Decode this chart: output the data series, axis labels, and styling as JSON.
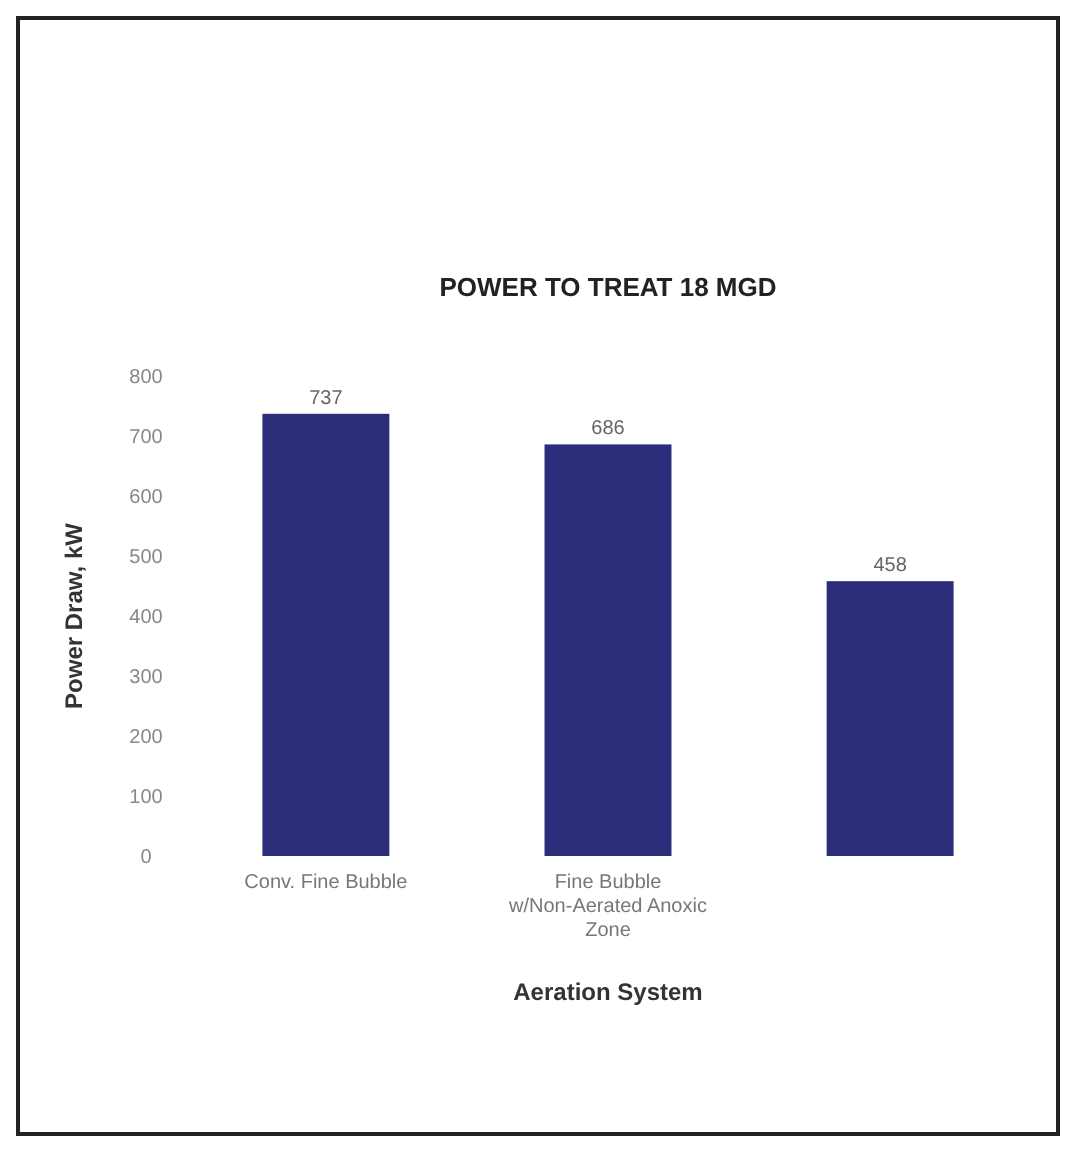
{
  "chart_data": {
    "type": "bar",
    "title": "POWER TO TREAT 18 MGD",
    "xlabel": "Aeration System",
    "ylabel": "Power Draw, kW",
    "categories": [
      "Conv. Fine Bubble",
      "Fine Bubble w/Non-Aerated Anoxic Zone",
      null
    ],
    "values": [
      737,
      686,
      458
    ],
    "color": "#2b2d7a",
    "data_labels": true,
    "ylim": [
      0,
      800
    ],
    "yticks": [
      0,
      100,
      200,
      300,
      400,
      500,
      600,
      700,
      800
    ]
  }
}
